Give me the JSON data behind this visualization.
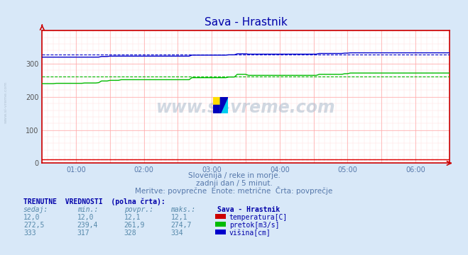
{
  "title": "Sava - Hrastnik",
  "background_color": "#d8e8f8",
  "plot_bg_color": "#ffffff",
  "watermark_text": "www.si-vreme.com",
  "subtitle1": "Slovenija / reke in morje.",
  "subtitle2": "zadnji dan / 5 minut.",
  "subtitle3": "Meritve: povprečne  Enote: metrične  Črta: povprečje",
  "table_header": "TRENUTNE  VREDNOSTI  (polna črta):",
  "col_headers": [
    "sedaj:",
    "min.:",
    "povpr.:",
    "maks.:"
  ],
  "legend_title": "Sava - Hrastnik",
  "rows": [
    {
      "sedaj": "12,0",
      "min": "12,0",
      "povpr": "12,1",
      "maks": "12,1",
      "color": "#cc0000",
      "label": "temperatura[C]"
    },
    {
      "sedaj": "272,5",
      "min": "239,4",
      "povpr": "261,9",
      "maks": "274,7",
      "color": "#00bb00",
      "label": "pretok[m3/s]"
    },
    {
      "sedaj": "333",
      "min": "317",
      "povpr": "328",
      "maks": "334",
      "color": "#0000cc",
      "label": "višina[cm]"
    }
  ],
  "temp_color": "#dd0000",
  "pretok_color": "#00bb00",
  "visina_color": "#0000cc",
  "n_points": 145,
  "temp_values": [
    12,
    12,
    12,
    12,
    12,
    12,
    12,
    12,
    12,
    12,
    12,
    12,
    12,
    12,
    12,
    12,
    12,
    12,
    12,
    12,
    12,
    12,
    12,
    12,
    12,
    12,
    12,
    12,
    12,
    12,
    12,
    12,
    12,
    12,
    12,
    12,
    12,
    12,
    12,
    12,
    12,
    12,
    12,
    12,
    12,
    12,
    12,
    12,
    12,
    12,
    12,
    12,
    12,
    12,
    12,
    12,
    12,
    12,
    12,
    12,
    12,
    12,
    12,
    12,
    12,
    12,
    12,
    12,
    12,
    12,
    12,
    12,
    12,
    12,
    12,
    12,
    12,
    12,
    12,
    12,
    12,
    12,
    12,
    12,
    12,
    12,
    12,
    12,
    12,
    12,
    12,
    12,
    12,
    12,
    12,
    12,
    12,
    12,
    12,
    12,
    12,
    12,
    12,
    12,
    12,
    12,
    12,
    12,
    12,
    12,
    12,
    12,
    12,
    12,
    12,
    12,
    12,
    12,
    12,
    12,
    12,
    12,
    12,
    12,
    12,
    12,
    12,
    12,
    12,
    12,
    12,
    12,
    12,
    12,
    12,
    12,
    12,
    12,
    12,
    12,
    12,
    12,
    12,
    12,
    12
  ],
  "pretok_values": [
    240,
    240,
    240,
    240,
    240,
    241,
    241,
    241,
    241,
    241,
    241,
    241,
    241,
    241,
    241,
    242,
    242,
    242,
    242,
    242,
    243,
    248,
    248,
    248,
    250,
    250,
    250,
    250,
    252,
    252,
    252,
    252,
    252,
    252,
    252,
    252,
    252,
    252,
    252,
    252,
    252,
    252,
    252,
    252,
    252,
    252,
    252,
    252,
    252,
    252,
    252,
    252,
    252,
    258,
    258,
    258,
    258,
    258,
    258,
    258,
    258,
    258,
    258,
    258,
    258,
    258,
    260,
    260,
    260,
    268,
    268,
    268,
    268,
    265,
    265,
    265,
    265,
    265,
    265,
    265,
    265,
    265,
    265,
    265,
    265,
    265,
    265,
    265,
    265,
    265,
    265,
    265,
    265,
    265,
    265,
    265,
    265,
    265,
    268,
    268,
    268,
    268,
    268,
    268,
    268,
    268,
    268,
    270,
    270,
    272,
    272,
    272,
    272,
    272,
    272,
    272,
    272,
    272,
    272,
    272,
    272,
    272,
    272,
    272,
    272,
    272,
    272,
    272,
    272,
    272,
    272,
    272,
    272,
    272,
    272,
    272,
    272,
    272,
    272,
    272,
    272,
    272,
    272,
    272,
    272
  ],
  "visina_values": [
    320,
    320,
    320,
    320,
    320,
    320,
    320,
    320,
    320,
    320,
    320,
    320,
    320,
    320,
    320,
    320,
    320,
    320,
    320,
    320,
    320,
    322,
    322,
    322,
    323,
    323,
    323,
    323,
    323,
    323,
    323,
    323,
    323,
    323,
    323,
    323,
    323,
    323,
    323,
    323,
    323,
    323,
    323,
    323,
    323,
    323,
    323,
    323,
    323,
    323,
    323,
    323,
    323,
    326,
    326,
    326,
    326,
    326,
    326,
    326,
    326,
    326,
    326,
    326,
    326,
    326,
    327,
    327,
    327,
    330,
    330,
    330,
    330,
    329,
    329,
    329,
    329,
    329,
    329,
    329,
    329,
    329,
    329,
    329,
    329,
    329,
    329,
    329,
    329,
    329,
    329,
    329,
    329,
    329,
    329,
    329,
    329,
    329,
    331,
    331,
    331,
    331,
    331,
    331,
    331,
    331,
    331,
    332,
    332,
    333,
    333,
    333,
    333,
    333,
    333,
    333,
    333,
    333,
    333,
    333,
    333,
    333,
    333,
    333,
    333,
    333,
    333,
    333,
    333,
    333,
    333,
    333,
    333,
    333,
    333,
    333,
    333,
    333,
    333,
    333,
    333,
    333,
    333,
    333,
    333
  ],
  "temp_avg": 12.1,
  "pretok_avg": 261.9,
  "visina_avg": 328,
  "axis_border_color": "#cc0000",
  "watermark_color": "#aabbcc",
  "left_label": "www.si-vreme.com",
  "shown_ticks": [
    12,
    36,
    60,
    84,
    108,
    132
  ],
  "shown_labels": [
    "01:00",
    "02:00",
    "03:00",
    "04:00",
    "05:00",
    "06:00"
  ]
}
